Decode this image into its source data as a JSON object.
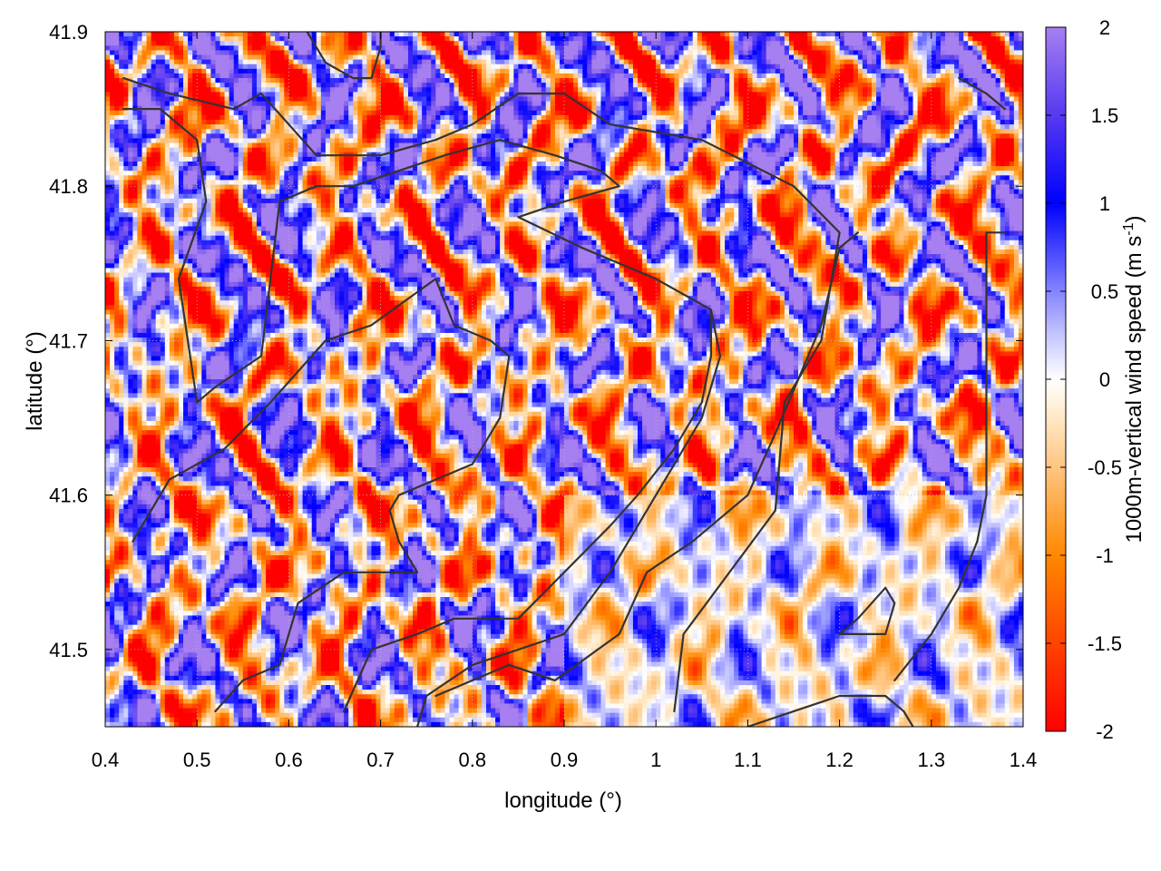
{
  "chart_data": {
    "type": "heatmap",
    "xlabel": "longitude (°)",
    "ylabel": "latitude (°)",
    "xlim": [
      0.4,
      1.4
    ],
    "ylim": [
      41.45,
      41.9
    ],
    "xticks": [
      "0.4",
      "0.5",
      "0.6",
      "0.7",
      "0.8",
      "0.9",
      "1",
      "1.1",
      "1.2",
      "1.3",
      "1.4"
    ],
    "yticks": [
      "41.5",
      "41.6",
      "41.7",
      "41.8",
      "41.9"
    ],
    "grid": true,
    "colorbar": {
      "label_main": "1000m-vertical wind speed (m s",
      "label_sup": "-1",
      "label_close": ")",
      "min": -2,
      "max": 2,
      "ticks": [
        "2",
        "1.5",
        "1",
        "0.5",
        "0",
        "-0.5",
        "-1",
        "-1.5",
        "-2"
      ],
      "palette": [
        "#ff0000",
        "#ff5500",
        "#ffaa00",
        "#ffffff",
        "#0000ff",
        "#a67ff0"
      ]
    },
    "field_description": "gridded vertical wind speed over longitude 0.4-1.4 and latitude 41.45-41.9; values range roughly -2 to 2 m/s with alternating updraft/downdraft bands",
    "contours": [
      [
        [
          0.42,
          41.87
        ],
        [
          0.47,
          41.86
        ],
        [
          0.54,
          41.85
        ],
        [
          0.57,
          41.86
        ],
        [
          0.6,
          41.84
        ],
        [
          0.63,
          41.82
        ],
        [
          0.7,
          41.82
        ],
        [
          0.76,
          41.83
        ],
        [
          0.8,
          41.84
        ],
        [
          0.85,
          41.86
        ],
        [
          0.9,
          41.86
        ],
        [
          0.95,
          41.84
        ],
        [
          1.05,
          41.83
        ],
        [
          1.15,
          41.8
        ],
        [
          1.2,
          41.77
        ],
        [
          1.18,
          41.7
        ],
        [
          1.14,
          41.66
        ],
        [
          1.13,
          41.59
        ],
        [
          1.03,
          41.51
        ],
        [
          1.02,
          41.46
        ]
      ],
      [
        [
          0.42,
          41.85
        ],
        [
          0.46,
          41.85
        ],
        [
          0.5,
          41.83
        ],
        [
          0.51,
          41.79
        ],
        [
          0.48,
          41.74
        ],
        [
          0.5,
          41.66
        ],
        [
          0.52,
          41.67
        ],
        [
          0.57,
          41.69
        ],
        [
          0.58,
          41.74
        ],
        [
          0.59,
          41.79
        ],
        [
          0.63,
          41.8
        ],
        [
          0.67,
          41.8
        ],
        [
          0.72,
          41.81
        ],
        [
          0.77,
          41.82
        ],
        [
          0.83,
          41.83
        ],
        [
          0.89,
          41.82
        ],
        [
          0.94,
          41.81
        ],
        [
          0.96,
          41.8
        ],
        [
          0.9,
          41.79
        ],
        [
          0.85,
          41.78
        ],
        [
          0.92,
          41.76
        ],
        [
          1.0,
          41.74
        ],
        [
          1.06,
          41.72
        ],
        [
          1.07,
          41.69
        ],
        [
          1.05,
          41.65
        ],
        [
          1.0,
          41.6
        ],
        [
          0.95,
          41.55
        ],
        [
          0.9,
          41.51
        ],
        [
          0.8,
          41.49
        ],
        [
          0.75,
          41.47
        ],
        [
          0.74,
          41.45
        ]
      ],
      [
        [
          0.43,
          41.57
        ],
        [
          0.47,
          41.61
        ],
        [
          0.53,
          41.63
        ],
        [
          0.58,
          41.66
        ],
        [
          0.64,
          41.7
        ],
        [
          0.69,
          41.71
        ],
        [
          0.76,
          41.74
        ],
        [
          0.78,
          41.71
        ],
        [
          0.82,
          41.7
        ],
        [
          0.84,
          41.69
        ],
        [
          0.83,
          41.65
        ],
        [
          0.8,
          41.62
        ],
        [
          0.76,
          41.61
        ],
        [
          0.72,
          41.6
        ],
        [
          0.71,
          41.59
        ],
        [
          0.72,
          41.57
        ],
        [
          0.74,
          41.55
        ],
        [
          0.7,
          41.55
        ],
        [
          0.66,
          41.55
        ],
        [
          0.61,
          41.53
        ],
        [
          0.6,
          41.51
        ],
        [
          0.59,
          41.49
        ],
        [
          0.55,
          41.48
        ],
        [
          0.52,
          41.46
        ]
      ],
      [
        [
          0.66,
          41.46
        ],
        [
          0.69,
          41.5
        ],
        [
          0.74,
          41.51
        ],
        [
          0.78,
          41.52
        ],
        [
          0.85,
          41.52
        ],
        [
          0.9,
          41.55
        ],
        [
          0.95,
          41.58
        ],
        [
          0.98,
          41.6
        ],
        [
          1.02,
          41.63
        ],
        [
          1.05,
          41.66
        ],
        [
          1.06,
          41.69
        ],
        [
          1.06,
          41.72
        ]
      ],
      [
        [
          0.76,
          41.47
        ],
        [
          0.84,
          41.49
        ],
        [
          0.89,
          41.48
        ],
        [
          0.96,
          41.51
        ],
        [
          0.99,
          41.55
        ],
        [
          1.04,
          41.57
        ],
        [
          1.1,
          41.6
        ],
        [
          1.13,
          41.64
        ],
        [
          1.18,
          41.71
        ],
        [
          1.2,
          41.76
        ],
        [
          1.22,
          41.77
        ]
      ],
      [
        [
          1.1,
          41.45
        ],
        [
          1.2,
          41.47
        ],
        [
          1.25,
          41.47
        ],
        [
          1.27,
          41.46
        ],
        [
          1.28,
          41.45
        ]
      ],
      [
        [
          1.2,
          41.51
        ],
        [
          1.23,
          41.51
        ],
        [
          1.25,
          41.51
        ],
        [
          1.26,
          41.53
        ],
        [
          1.25,
          41.54
        ],
        [
          1.22,
          41.52
        ],
        [
          1.2,
          41.51
        ]
      ],
      [
        [
          1.26,
          41.48
        ],
        [
          1.3,
          41.51
        ],
        [
          1.33,
          41.54
        ],
        [
          1.35,
          41.57
        ],
        [
          1.36,
          41.6
        ],
        [
          1.36,
          41.64
        ],
        [
          1.36,
          41.68
        ],
        [
          1.36,
          41.72
        ],
        [
          1.36,
          41.76
        ],
        [
          1.36,
          41.77
        ],
        [
          1.38,
          41.77
        ]
      ],
      [
        [
          1.33,
          41.87
        ],
        [
          1.36,
          41.86
        ],
        [
          1.38,
          41.85
        ]
      ],
      [
        [
          0.62,
          41.9
        ],
        [
          0.64,
          41.88
        ],
        [
          0.67,
          41.87
        ],
        [
          0.69,
          41.87
        ],
        [
          0.7,
          41.89
        ],
        [
          0.7,
          41.9
        ]
      ]
    ]
  }
}
